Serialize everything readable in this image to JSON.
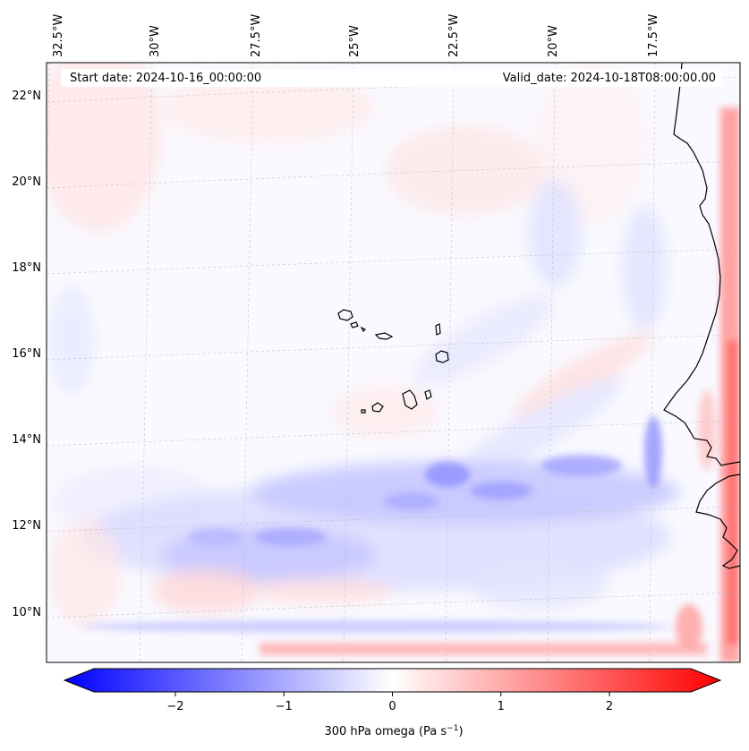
{
  "header": {
    "start_date": "Start date: 2024-10-16_00:00:00",
    "valid_date": "Valid_date: 2024-10-18T08:00:00.00"
  },
  "map": {
    "lon_labels": [
      "32.5°W",
      "30°W",
      "27.5°W",
      "25°W",
      "22.5°W",
      "20°W",
      "17.5°W"
    ],
    "lat_labels": [
      "22°N",
      "20°N",
      "18°N",
      "16°N",
      "14°N",
      "12°N",
      "10°N"
    ],
    "gridlines": "dashed",
    "features": [
      "African coastline",
      "Cape Verde islands"
    ]
  },
  "colorbar": {
    "colormap": "bwr",
    "min_color": "#0000ff",
    "mid_color": "#ffffff",
    "max_color": "#ff0000",
    "range": [
      -2.75,
      2.75
    ],
    "extend": "both",
    "ticks": [
      -2,
      -1,
      0,
      1,
      2
    ],
    "tick_labels": [
      "−2",
      "−1",
      "0",
      "1",
      "2"
    ],
    "label_main": "300 hPa omega (Pa s",
    "label_exp": "−1",
    "label_end": ")"
  }
}
